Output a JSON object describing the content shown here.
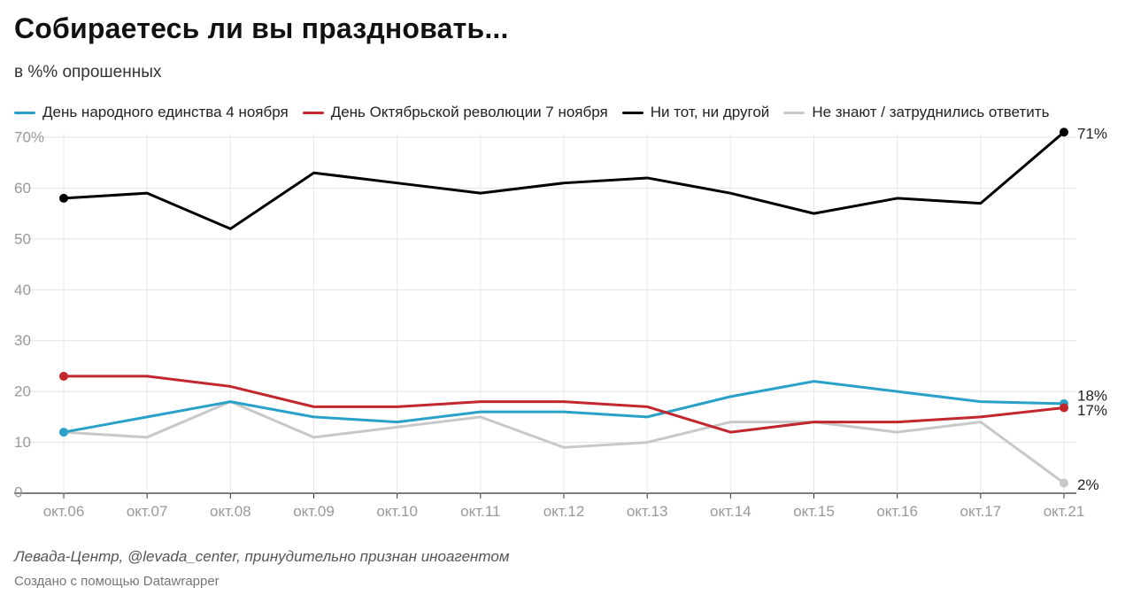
{
  "header": {
    "title": "Собираетесь ли вы праздновать...",
    "subtitle": "в %% опрошенных"
  },
  "footer": {
    "source": "Левада-Центр, @levada_center, принудительно признан иноагентом",
    "credit": "Создано с помощью Datawrapper"
  },
  "chart_data": {
    "type": "line",
    "title": "Собираетесь ли вы праздновать...",
    "subtitle": "в %% опрошенных",
    "xlabel": "",
    "ylabel": "",
    "ylim": [
      0,
      70
    ],
    "yticks": [
      0,
      10,
      20,
      30,
      40,
      50,
      60,
      70
    ],
    "ytick_labels": [
      "0",
      "10",
      "20",
      "30",
      "40",
      "50",
      "60",
      "70%"
    ],
    "grid": true,
    "legend_position": "top",
    "categories": [
      "окт.06",
      "окт.07",
      "окт.08",
      "окт.09",
      "окт.10",
      "окт.11",
      "окт.12",
      "окт.13",
      "окт.14",
      "окт.15",
      "окт.16",
      "окт.17",
      "окт.21"
    ],
    "series": [
      {
        "name": "День народного единства 4 ноября",
        "color": "#2aa1c9",
        "values": [
          12,
          15,
          18,
          15,
          14,
          16,
          16,
          15,
          19,
          22,
          20,
          18,
          17.6
        ],
        "end_label": "18%"
      },
      {
        "name": "День Октябрьской революции 7 ноября",
        "color": "#c1272d",
        "values": [
          23,
          23,
          21,
          17,
          17,
          18,
          18,
          17,
          12,
          14,
          14,
          15,
          16.8
        ],
        "end_label": "17%"
      },
      {
        "name": "Ни тот, ни другой",
        "color": "#000000",
        "values": [
          58,
          59,
          52,
          63,
          61,
          59,
          61,
          62,
          59,
          55,
          58,
          57,
          71
        ],
        "end_label": "71%"
      },
      {
        "name": "Не знают / затруднились ответить",
        "color": "#c8c8c8",
        "values": [
          12,
          11,
          18,
          11,
          13,
          15,
          9,
          10,
          14,
          14,
          12,
          14,
          2
        ],
        "end_label": "2%"
      }
    ]
  }
}
